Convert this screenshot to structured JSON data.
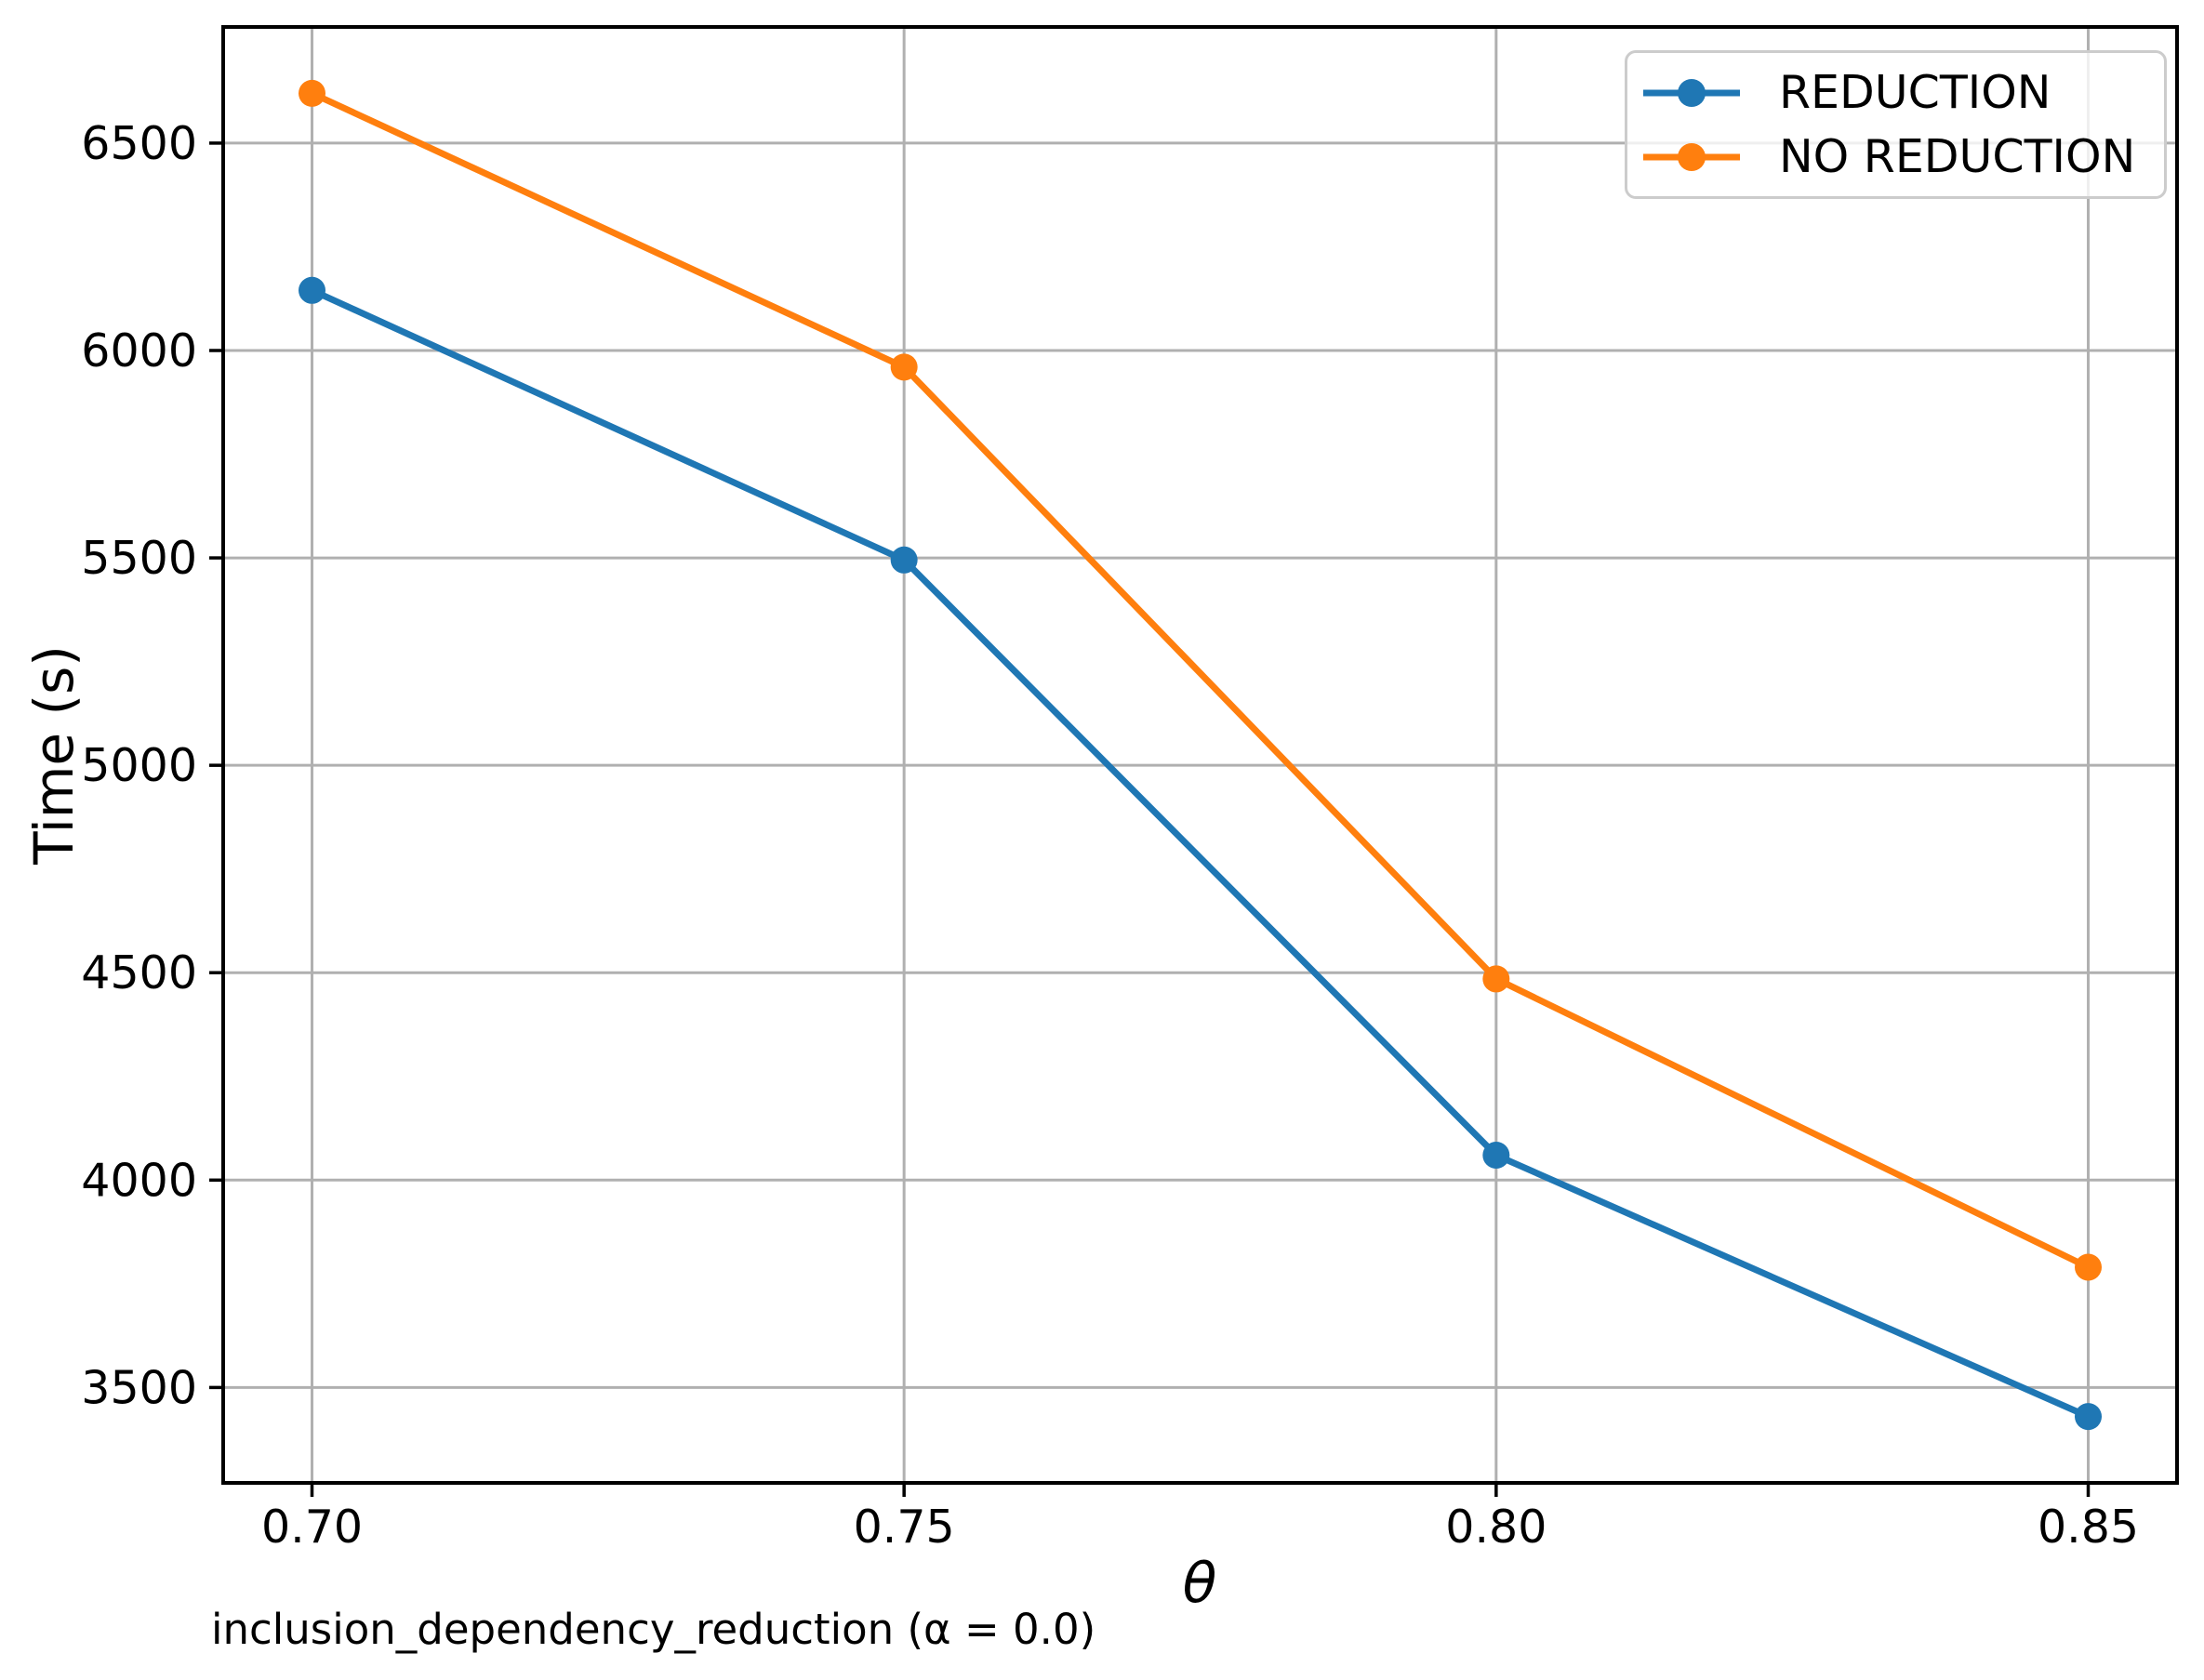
{
  "figure": {
    "caption": "inclusion_dependency_reduction (α = 0.0)",
    "background": "#ffffff"
  },
  "chart_data": {
    "type": "line",
    "x": [
      0.7,
      0.75,
      0.8,
      0.85
    ],
    "series": [
      {
        "name": "REDUCTION",
        "color": "#1f77b4",
        "values": [
          6145,
          5495,
          4060,
          3430
        ]
      },
      {
        "name": "NO REDUCTION",
        "color": "#ff7f0e",
        "values": [
          6620,
          5960,
          4485,
          3790
        ]
      }
    ],
    "title": "",
    "xlabel": "θ",
    "ylabel": "Time (s)",
    "xlim": [
      0.6925,
      0.8575
    ],
    "ylim": [
      3270,
      6780
    ],
    "xticks": {
      "values": [
        0.7,
        0.75,
        0.8,
        0.85
      ],
      "labels": [
        "0.70",
        "0.75",
        "0.80",
        "0.85"
      ]
    },
    "yticks": {
      "values": [
        3500,
        4000,
        4500,
        5000,
        5500,
        6000,
        6500
      ],
      "labels": [
        "3500",
        "4000",
        "4500",
        "5000",
        "5500",
        "6000",
        "6500"
      ]
    },
    "grid": true,
    "grid_color": "#b0b0b0",
    "spine_color": "#000000",
    "marker": "o",
    "legend": {
      "position": "upper right",
      "entries": [
        "REDUCTION",
        "NO REDUCTION"
      ]
    }
  }
}
